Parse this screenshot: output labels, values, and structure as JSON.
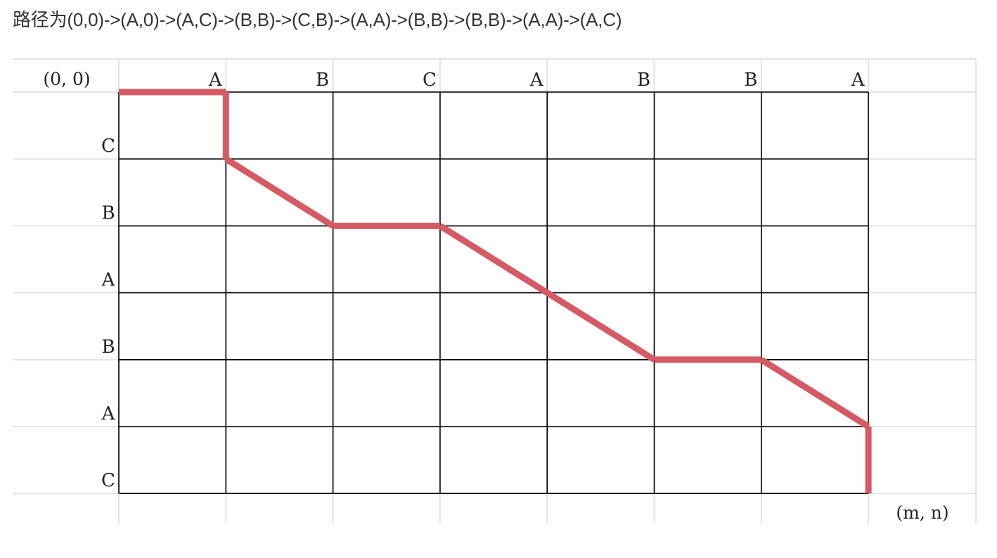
{
  "heading": {
    "text": "路径为(0,0)->(A,0)->(A,C)->(B,B)->(C,B)->(A,A)->(B,B)->(B,B)->(A,A)->(A,C)"
  },
  "grid": {
    "origin_label": "(0, 0)",
    "end_label": "(m, n)",
    "column_labels": [
      "A",
      "B",
      "C",
      "A",
      "B",
      "B",
      "A"
    ],
    "row_labels": [
      "C",
      "B",
      "A",
      "B",
      "A",
      "C"
    ]
  },
  "path": {
    "color": "#d65a63",
    "points": [
      [
        0,
        0
      ],
      [
        1,
        0
      ],
      [
        1,
        1
      ],
      [
        2,
        2
      ],
      [
        3,
        2
      ],
      [
        4,
        3
      ],
      [
        5,
        4
      ],
      [
        6,
        4
      ],
      [
        7,
        5
      ],
      [
        7,
        6
      ]
    ]
  },
  "colors": {
    "grid_line": "#000000",
    "background_line": "#e3e3e3"
  }
}
